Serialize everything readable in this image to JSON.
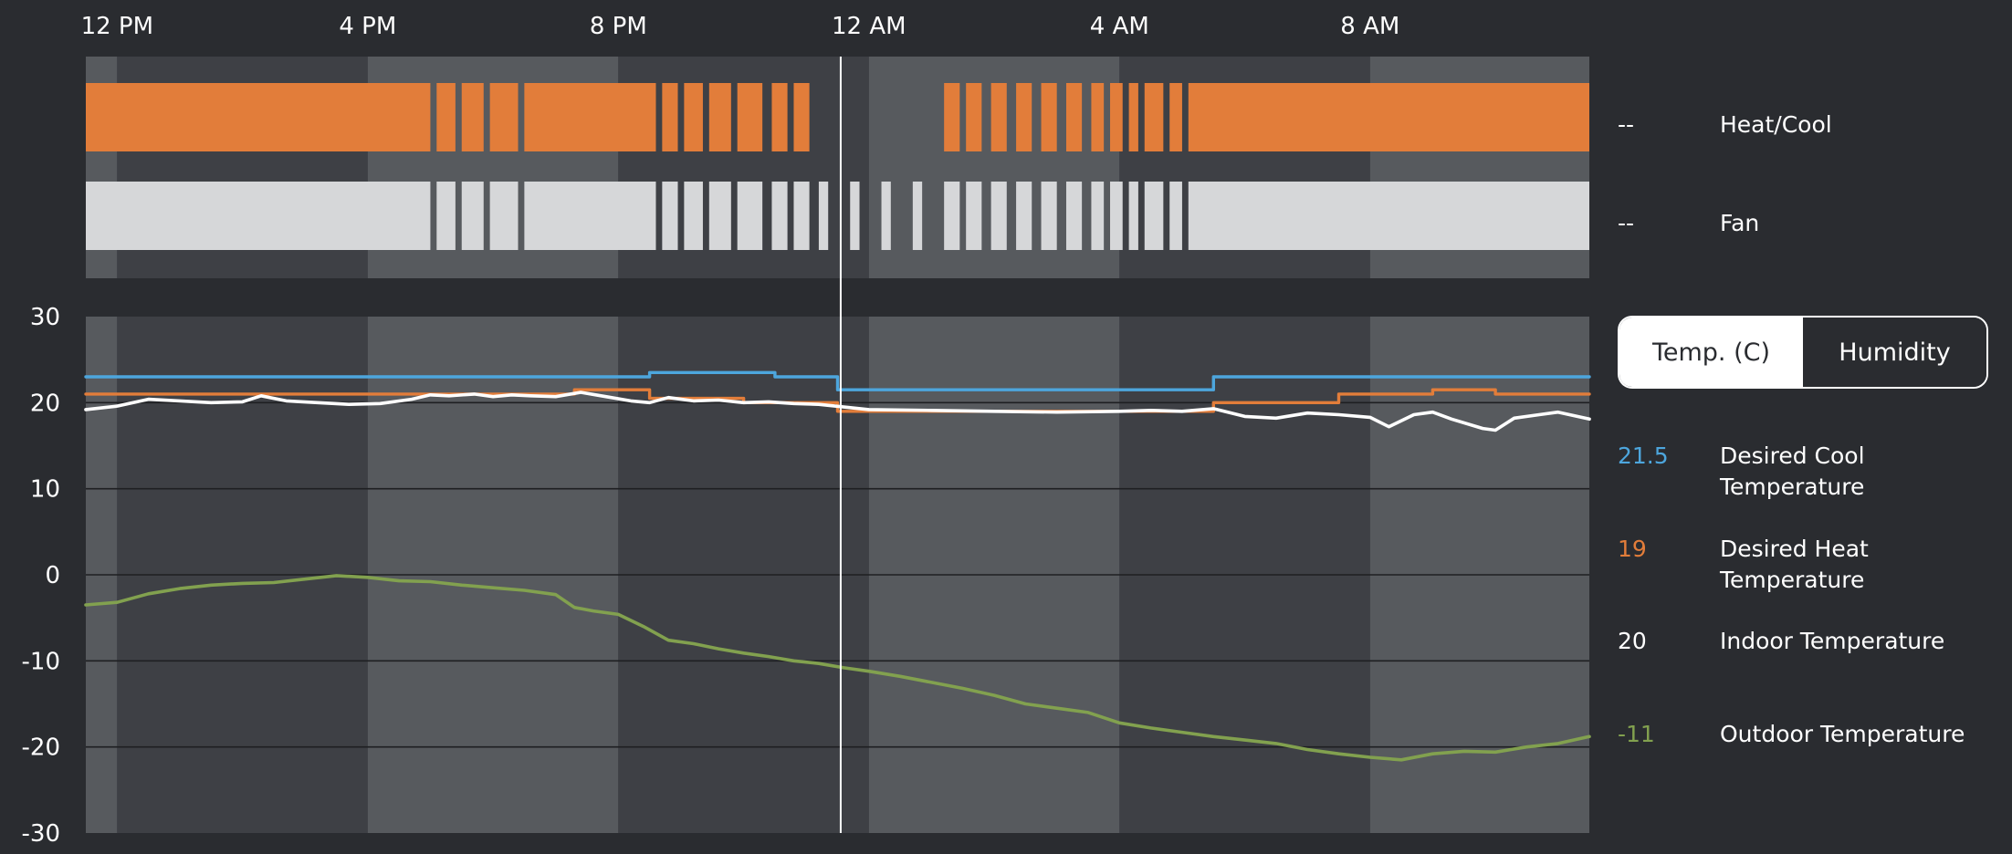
{
  "colors": {
    "background": "#2a2c30",
    "band_dark": "#3e4045",
    "band_light": "#575a5e",
    "heat_cool": "#e27d3a",
    "fan": "#d6d7d9",
    "desired_cool": "#4da6dd",
    "desired_heat": "#e27d3a",
    "indoor": "#ffffff",
    "outdoor": "#82a14f",
    "grid": "#1e1f22"
  },
  "time_axis": {
    "labels": [
      "12 PM",
      "4 PM",
      "8 PM",
      "12 AM",
      "4 AM",
      "8 AM"
    ],
    "label_hours": [
      0,
      4,
      8,
      12,
      16,
      20
    ],
    "hours_range": [
      -0.5,
      23.5
    ],
    "band_period_hours": 8,
    "cursor_hour": 11.55
  },
  "activity": {
    "rows": [
      {
        "name": "Heat/Cool",
        "value": "--",
        "color_key": "heat_cool",
        "segments": [
          [
            -0.5,
            5.0
          ],
          [
            5.1,
            5.4
          ],
          [
            5.5,
            5.85
          ],
          [
            5.95,
            6.4
          ],
          [
            6.5,
            8.6
          ],
          [
            8.7,
            8.95
          ],
          [
            9.05,
            9.35
          ],
          [
            9.45,
            9.8
          ],
          [
            9.9,
            10.3
          ],
          [
            10.45,
            10.7
          ],
          [
            10.8,
            11.05
          ],
          [
            13.2,
            13.45
          ],
          [
            13.55,
            13.8
          ],
          [
            13.95,
            14.2
          ],
          [
            14.35,
            14.6
          ],
          [
            14.75,
            15.0
          ],
          [
            15.15,
            15.4
          ],
          [
            15.55,
            15.75
          ],
          [
            15.85,
            16.05
          ],
          [
            16.15,
            16.3
          ],
          [
            16.4,
            16.7
          ],
          [
            16.8,
            17.0
          ],
          [
            17.1,
            23.5
          ]
        ]
      },
      {
        "name": "Fan",
        "value": "--",
        "color_key": "fan",
        "segments": [
          [
            -0.5,
            5.0
          ],
          [
            5.1,
            5.4
          ],
          [
            5.5,
            5.85
          ],
          [
            5.95,
            6.4
          ],
          [
            6.5,
            8.6
          ],
          [
            8.7,
            8.95
          ],
          [
            9.05,
            9.35
          ],
          [
            9.45,
            9.8
          ],
          [
            9.9,
            10.3
          ],
          [
            10.45,
            10.7
          ],
          [
            10.8,
            11.05
          ],
          [
            11.2,
            11.35
          ],
          [
            11.7,
            11.85
          ],
          [
            12.2,
            12.35
          ],
          [
            12.7,
            12.85
          ],
          [
            13.2,
            13.45
          ],
          [
            13.55,
            13.8
          ],
          [
            13.95,
            14.2
          ],
          [
            14.35,
            14.6
          ],
          [
            14.75,
            15.0
          ],
          [
            15.15,
            15.4
          ],
          [
            15.55,
            15.75
          ],
          [
            15.85,
            16.05
          ],
          [
            16.15,
            16.3
          ],
          [
            16.4,
            16.7
          ],
          [
            16.8,
            17.0
          ],
          [
            17.1,
            23.5
          ]
        ]
      }
    ]
  },
  "toggle": {
    "options": [
      "Temp. (C)",
      "Humidity"
    ],
    "active": "Temp. (C)"
  },
  "chart_data": {
    "type": "line",
    "y_ticks": [
      "30",
      "20",
      "10",
      "0",
      "-10",
      "-20",
      "-30"
    ],
    "y_tick_values": [
      30,
      20,
      10,
      0,
      -10,
      -20,
      -30
    ],
    "ylim": [
      -30,
      30
    ],
    "xlim_hours": [
      -0.5,
      23.5
    ],
    "grid": true,
    "series": [
      {
        "name": "Desired Cool Temperature",
        "value": "21.5",
        "color_key": "desired_cool",
        "step": true,
        "points": [
          [
            -0.5,
            23
          ],
          [
            8.5,
            23
          ],
          [
            8.5,
            23.5
          ],
          [
            10.5,
            23.5
          ],
          [
            10.5,
            23
          ],
          [
            11.5,
            23
          ],
          [
            11.5,
            21.5
          ],
          [
            17.5,
            21.5
          ],
          [
            17.5,
            23
          ],
          [
            23.5,
            23
          ]
        ]
      },
      {
        "name": "Desired Heat Temperature",
        "value": "19",
        "color_key": "desired_heat",
        "step": true,
        "points": [
          [
            -0.5,
            21
          ],
          [
            7.3,
            21
          ],
          [
            7.3,
            21.5
          ],
          [
            8.5,
            21.5
          ],
          [
            8.5,
            20.5
          ],
          [
            10.0,
            20.5
          ],
          [
            10.0,
            20
          ],
          [
            11.5,
            20
          ],
          [
            11.5,
            19
          ],
          [
            17.5,
            19
          ],
          [
            17.5,
            20
          ],
          [
            19.5,
            20
          ],
          [
            19.5,
            21
          ],
          [
            21.0,
            21
          ],
          [
            21.0,
            21.5
          ],
          [
            22.0,
            21.5
          ],
          [
            22.0,
            21
          ],
          [
            23.5,
            21
          ]
        ]
      },
      {
        "name": "Indoor Temperature",
        "value": "20",
        "color_key": "indoor",
        "step": false,
        "points": [
          [
            -0.5,
            19.2
          ],
          [
            0.0,
            19.6
          ],
          [
            0.5,
            20.4
          ],
          [
            1.0,
            20.2
          ],
          [
            1.5,
            20.0
          ],
          [
            2.0,
            20.1
          ],
          [
            2.3,
            20.8
          ],
          [
            2.7,
            20.2
          ],
          [
            3.2,
            20.0
          ],
          [
            3.7,
            19.8
          ],
          [
            4.2,
            19.9
          ],
          [
            4.7,
            20.4
          ],
          [
            5.0,
            20.9
          ],
          [
            5.3,
            20.8
          ],
          [
            5.7,
            21.0
          ],
          [
            6.0,
            20.7
          ],
          [
            6.3,
            20.9
          ],
          [
            6.6,
            20.8
          ],
          [
            7.0,
            20.7
          ],
          [
            7.4,
            21.2
          ],
          [
            7.8,
            20.7
          ],
          [
            8.2,
            20.2
          ],
          [
            8.5,
            20.0
          ],
          [
            8.8,
            20.6
          ],
          [
            9.2,
            20.2
          ],
          [
            9.6,
            20.3
          ],
          [
            10.0,
            20.0
          ],
          [
            10.4,
            20.1
          ],
          [
            10.8,
            19.9
          ],
          [
            11.2,
            19.8
          ],
          [
            11.6,
            19.5
          ],
          [
            12.0,
            19.2
          ],
          [
            13.0,
            19.1
          ],
          [
            14.0,
            19.0
          ],
          [
            15.0,
            18.9
          ],
          [
            16.0,
            19.0
          ],
          [
            16.5,
            19.1
          ],
          [
            17.0,
            19.0
          ],
          [
            17.5,
            19.3
          ],
          [
            18.0,
            18.4
          ],
          [
            18.5,
            18.2
          ],
          [
            19.0,
            18.8
          ],
          [
            19.5,
            18.6
          ],
          [
            20.0,
            18.3
          ],
          [
            20.3,
            17.2
          ],
          [
            20.7,
            18.6
          ],
          [
            21.0,
            18.9
          ],
          [
            21.3,
            18.1
          ],
          [
            21.8,
            17.0
          ],
          [
            22.0,
            16.8
          ],
          [
            22.3,
            18.2
          ],
          [
            22.7,
            18.6
          ],
          [
            23.0,
            18.9
          ],
          [
            23.5,
            18.1
          ]
        ]
      },
      {
        "name": "Outdoor Temperature",
        "value": "-11",
        "color_key": "outdoor",
        "step": false,
        "points": [
          [
            -0.5,
            -3.5
          ],
          [
            0.0,
            -3.2
          ],
          [
            0.5,
            -2.2
          ],
          [
            1.0,
            -1.6
          ],
          [
            1.5,
            -1.2
          ],
          [
            2.0,
            -1.0
          ],
          [
            2.5,
            -0.9
          ],
          [
            3.0,
            -0.5
          ],
          [
            3.5,
            -0.1
          ],
          [
            4.0,
            -0.3
          ],
          [
            4.5,
            -0.7
          ],
          [
            5.0,
            -0.8
          ],
          [
            5.5,
            -1.2
          ],
          [
            6.0,
            -1.5
          ],
          [
            6.5,
            -1.8
          ],
          [
            7.0,
            -2.3
          ],
          [
            7.3,
            -3.8
          ],
          [
            7.6,
            -4.2
          ],
          [
            8.0,
            -4.6
          ],
          [
            8.4,
            -6.0
          ],
          [
            8.8,
            -7.6
          ],
          [
            9.2,
            -8.0
          ],
          [
            9.6,
            -8.6
          ],
          [
            10.0,
            -9.1
          ],
          [
            10.4,
            -9.5
          ],
          [
            10.8,
            -10.0
          ],
          [
            11.2,
            -10.3
          ],
          [
            11.6,
            -10.8
          ],
          [
            12.0,
            -11.2
          ],
          [
            12.5,
            -11.8
          ],
          [
            13.0,
            -12.5
          ],
          [
            13.5,
            -13.2
          ],
          [
            14.0,
            -14.0
          ],
          [
            14.5,
            -15.0
          ],
          [
            15.0,
            -15.5
          ],
          [
            15.5,
            -16.0
          ],
          [
            16.0,
            -17.2
          ],
          [
            16.5,
            -17.8
          ],
          [
            17.0,
            -18.3
          ],
          [
            17.5,
            -18.8
          ],
          [
            18.0,
            -19.2
          ],
          [
            18.5,
            -19.6
          ],
          [
            19.0,
            -20.3
          ],
          [
            19.5,
            -20.8
          ],
          [
            20.0,
            -21.2
          ],
          [
            20.5,
            -21.5
          ],
          [
            21.0,
            -20.8
          ],
          [
            21.5,
            -20.5
          ],
          [
            22.0,
            -20.6
          ],
          [
            22.5,
            -20.0
          ],
          [
            23.0,
            -19.6
          ],
          [
            23.5,
            -18.8
          ]
        ]
      }
    ]
  }
}
